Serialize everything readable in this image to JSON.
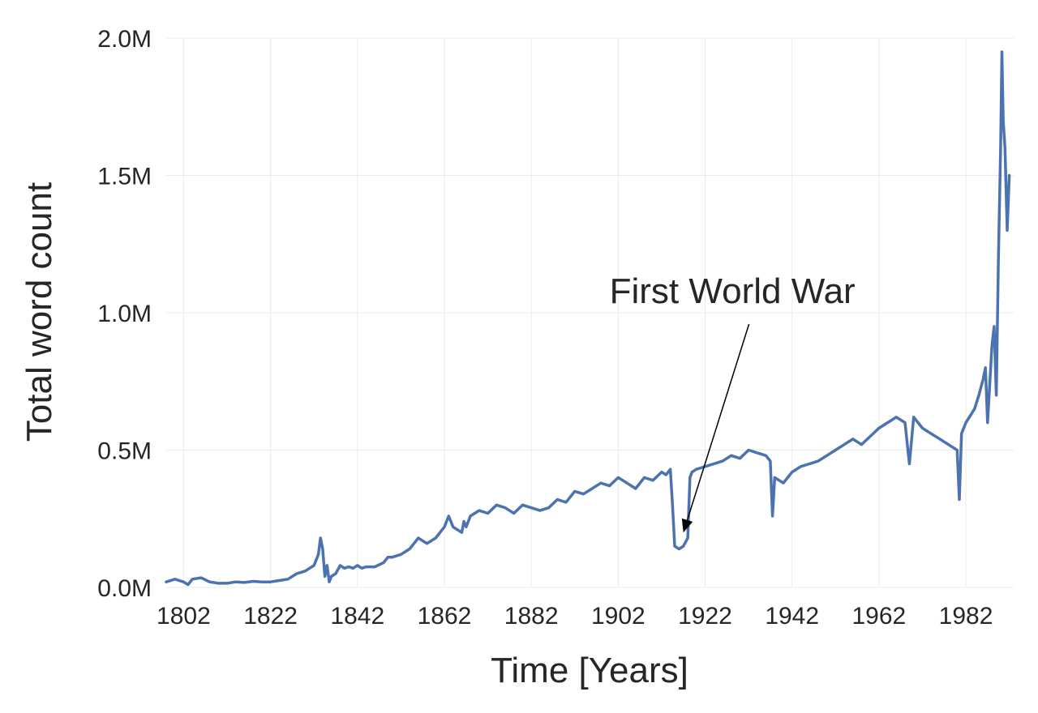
{
  "chart_data": {
    "type": "line",
    "title": "",
    "xlabel": "Time [Years]",
    "ylabel": "Total word count",
    "xlim": [
      1798,
      1993
    ],
    "ylim": [
      0,
      2000000
    ],
    "grid": true,
    "legend": "none",
    "x_ticks": [
      1802,
      1822,
      1842,
      1862,
      1882,
      1902,
      1922,
      1942,
      1962,
      1982
    ],
    "x_tick_labels": [
      "1802",
      "1822",
      "1842",
      "1862",
      "1882",
      "1902",
      "1922",
      "1942",
      "1962",
      "1982"
    ],
    "y_ticks": [
      0,
      500000,
      1000000,
      1500000,
      2000000
    ],
    "y_tick_labels": [
      "0.0M",
      "0.5M",
      "1.0M",
      "1.5M",
      "2.0M"
    ],
    "series": [
      {
        "color": "#4c72b0",
        "x": [
          1798,
          1800,
          1802,
          1803,
          1804,
          1806,
          1808,
          1810,
          1812,
          1814,
          1816,
          1818,
          1820,
          1822,
          1824,
          1826,
          1828,
          1829,
          1830,
          1831,
          1832,
          1833,
          1833.5,
          1834,
          1834.5,
          1835,
          1835.5,
          1836,
          1837,
          1838,
          1839,
          1840,
          1841,
          1842,
          1843,
          1844,
          1846,
          1848,
          1849,
          1850,
          1852,
          1854,
          1855,
          1856,
          1858,
          1860,
          1861,
          1862,
          1863,
          1864,
          1866,
          1866.5,
          1867,
          1868,
          1870,
          1872,
          1874,
          1876,
          1878,
          1880,
          1882,
          1884,
          1886,
          1888,
          1890,
          1892,
          1894,
          1896,
          1898,
          1900,
          1902,
          1904,
          1906,
          1908,
          1910,
          1912,
          1913,
          1914,
          1914.5,
          1915,
          1916,
          1917,
          1918,
          1918.5,
          1919,
          1920,
          1922,
          1924,
          1926,
          1928,
          1930,
          1932,
          1934,
          1936,
          1937,
          1937.5,
          1938,
          1940,
          1942,
          1944,
          1946,
          1948,
          1950,
          1952,
          1954,
          1956,
          1958,
          1960,
          1962,
          1964,
          1966,
          1968,
          1969,
          1970,
          1971,
          1972,
          1974,
          1976,
          1978,
          1980,
          1980.5,
          1981,
          1982,
          1984,
          1985,
          1986,
          1986.5,
          1987,
          1988,
          1988.5,
          1989,
          1989.5,
          1990,
          1990.3,
          1990.6,
          1991,
          1991.5,
          1992
        ],
        "y": [
          20000,
          30000,
          20000,
          10000,
          30000,
          35000,
          20000,
          15000,
          15000,
          20000,
          18000,
          22000,
          20000,
          20000,
          25000,
          30000,
          50000,
          55000,
          60000,
          70000,
          80000,
          120000,
          180000,
          140000,
          40000,
          80000,
          20000,
          40000,
          50000,
          80000,
          70000,
          75000,
          70000,
          80000,
          70000,
          75000,
          75000,
          90000,
          110000,
          110000,
          120000,
          140000,
          160000,
          180000,
          160000,
          180000,
          200000,
          220000,
          260000,
          220000,
          200000,
          240000,
          220000,
          260000,
          280000,
          270000,
          300000,
          290000,
          270000,
          300000,
          290000,
          280000,
          290000,
          320000,
          310000,
          350000,
          340000,
          360000,
          380000,
          370000,
          400000,
          380000,
          360000,
          400000,
          390000,
          420000,
          410000,
          430000,
          300000,
          150000,
          140000,
          150000,
          180000,
          400000,
          420000,
          430000,
          440000,
          450000,
          460000,
          480000,
          470000,
          500000,
          490000,
          480000,
          460000,
          260000,
          400000,
          380000,
          420000,
          440000,
          450000,
          460000,
          480000,
          500000,
          520000,
          540000,
          520000,
          550000,
          580000,
          600000,
          620000,
          600000,
          450000,
          620000,
          600000,
          580000,
          560000,
          540000,
          520000,
          500000,
          320000,
          560000,
          600000,
          650000,
          700000,
          760000,
          800000,
          600000,
          880000,
          950000,
          700000,
          1200000,
          1600000,
          1950000,
          1700000,
          1600000,
          1300000,
          1500000
        ]
      }
    ],
    "annotations": [
      {
        "text": "First World War",
        "text_x": 1900,
        "text_y": 1000000,
        "point_x": 1917,
        "point_y": 200000
      }
    ]
  }
}
